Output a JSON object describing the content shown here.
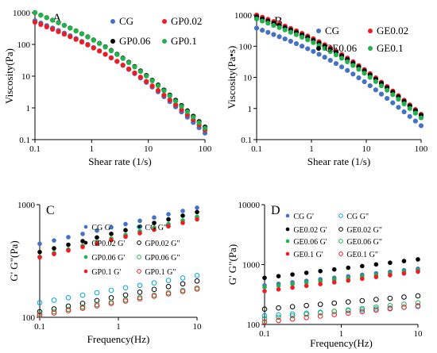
{
  "chart_data": [
    {
      "type": "scatter",
      "panel_label": "A",
      "xlabel": "Shear rate (1/s)",
      "ylabel": "Viscosity(Pa)",
      "x_scale": "log",
      "y_scale": "log",
      "xlim": [
        0.1,
        100
      ],
      "ylim": [
        0.1,
        1000
      ],
      "x_ticks": [
        "0.1",
        "1",
        "10",
        "100"
      ],
      "y_ticks": [
        "0.1",
        "1",
        "10",
        "100",
        "1000"
      ],
      "grid": false,
      "legend_placement": "top-right",
      "x_start": 0.1,
      "x_end": 100,
      "points_per_series": 30,
      "series": [
        {
          "name": "CG",
          "color": "#4472c4",
          "marker": "filled",
          "y_start": 560,
          "y_end": 0.16
        },
        {
          "name": "GP0.02",
          "color": "#ee1c25",
          "marker": "filled",
          "y_start": 500,
          "y_end": 0.2
        },
        {
          "name": "GP0.06",
          "color": "#000000",
          "marker": "filled",
          "y_start": 1000,
          "y_end": 0.25
        },
        {
          "name": "GP0.1",
          "color": "#22b14c",
          "marker": "filled",
          "y_start": 1000,
          "y_end": 0.23
        }
      ]
    },
    {
      "type": "scatter",
      "panel_label": "B",
      "xlabel": "Shear rate (1/s)",
      "ylabel": "Viscosity(Pa•s)",
      "x_scale": "log",
      "y_scale": "log",
      "xlim": [
        0.1,
        100
      ],
      "ylim": [
        0.1,
        1000
      ],
      "x_ticks": [
        "0.1",
        "1",
        "10",
        "100"
      ],
      "y_ticks": [
        "0.1",
        "1",
        "10",
        "100",
        "1000"
      ],
      "grid": false,
      "legend_placement": "top-right",
      "x_start": 0.1,
      "x_end": 100,
      "points_per_series": 30,
      "series": [
        {
          "name": "CG",
          "color": "#4472c4",
          "marker": "filled",
          "y_start": 380,
          "y_end": 0.28
        },
        {
          "name": "GE0.02",
          "color": "#ee1c25",
          "marker": "filled",
          "y_start": 1000,
          "y_end": 0.65
        },
        {
          "name": "GE0.06",
          "color": "#000000",
          "marker": "filled",
          "y_start": 880,
          "y_end": 0.6
        },
        {
          "name": "GE0.1",
          "color": "#22b14c",
          "marker": "filled",
          "y_start": 750,
          "y_end": 0.5
        }
      ]
    },
    {
      "type": "scatter",
      "panel_label": "C",
      "xlabel": "Frequency(Hz)",
      "ylabel": "G' G\"(Pa)",
      "x_scale": "log",
      "y_scale": "log",
      "xlim": [
        0.1,
        10
      ],
      "ylim": [
        100,
        1000
      ],
      "x_ticks": [
        "0.1",
        "1",
        "10"
      ],
      "y_ticks": [
        "100",
        "1000"
      ],
      "grid": false,
      "legend_placement": "center-left",
      "x_start": 0.1,
      "x_end": 10,
      "points_per_series": 12,
      "series": [
        {
          "name": "CG G'",
          "color": "#4472c4",
          "marker": "filled",
          "y_start": 450,
          "y_end": 940
        },
        {
          "name": "GP0.02 G'",
          "color": "#000000",
          "marker": "filled",
          "y_start": 380,
          "y_end": 860
        },
        {
          "name": "GP0.06 G'",
          "color": "#22b14c",
          "marker": "filled",
          "y_start": 345,
          "y_end": 780
        },
        {
          "name": "GP0.1 G'",
          "color": "#ee1c25",
          "marker": "filled",
          "y_start": 340,
          "y_end": 740
        },
        {
          "name": "CG G\"",
          "color": "#00a2e8",
          "marker": "open",
          "y_start": 135,
          "y_end": 235
        },
        {
          "name": "GP0.02 G\"",
          "color": "#000000",
          "marker": "open",
          "y_start": 112,
          "y_end": 210
        },
        {
          "name": "GP0.06 G\"",
          "color": "#22b14c",
          "marker": "open",
          "y_start": 107,
          "y_end": 182
        },
        {
          "name": "GP0.1 G\"",
          "color": "#ee1c25",
          "marker": "open",
          "y_start": 104,
          "y_end": 178
        }
      ]
    },
    {
      "type": "scatter",
      "panel_label": "D",
      "xlabel": "Frequency(Hz)",
      "ylabel": "G' G\"(Pa)",
      "x_scale": "log",
      "y_scale": "log",
      "xlim": [
        0.1,
        10
      ],
      "ylim": [
        100,
        10000
      ],
      "x_ticks": [
        "0.1",
        "1",
        "10"
      ],
      "y_ticks": [
        "100",
        "1000",
        "10000"
      ],
      "grid": false,
      "legend_placement": "top-left",
      "x_start": 0.1,
      "x_end": 10,
      "points_per_series": 12,
      "series": [
        {
          "name": "CG G'",
          "color": "#4472c4",
          "marker": "filled",
          "y_start": 450,
          "y_end": 850
        },
        {
          "name": "GE0.02 G'",
          "color": "#000000",
          "marker": "filled",
          "y_start": 600,
          "y_end": 1220
        },
        {
          "name": "GE0.06 G'",
          "color": "#22b14c",
          "marker": "filled",
          "y_start": 420,
          "y_end": 800
        },
        {
          "name": "GE0.1 G'",
          "color": "#ee1c25",
          "marker": "filled",
          "y_start": 360,
          "y_end": 760
        },
        {
          "name": "CG G\"",
          "color": "#00a2e8",
          "marker": "open",
          "y_start": 140,
          "y_end": 200
        },
        {
          "name": "GE0.02 G\"",
          "color": "#000000",
          "marker": "open",
          "y_start": 180,
          "y_end": 300
        },
        {
          "name": "GE0.06 G\"",
          "color": "#22b14c",
          "marker": "open",
          "y_start": 125,
          "y_end": 230
        },
        {
          "name": "GE0.1 G\"",
          "color": "#ee1c25",
          "marker": "open",
          "y_start": 110,
          "y_end": 205
        }
      ]
    }
  ]
}
